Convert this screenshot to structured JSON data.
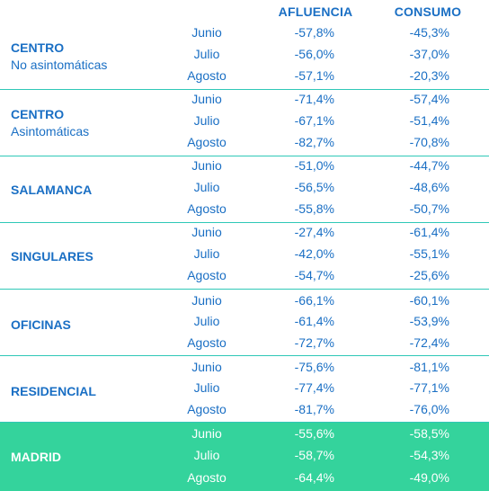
{
  "header": {
    "afluencia": "AFLUENCIA",
    "consumo": "CONSUMO"
  },
  "groups": [
    {
      "title": "CENTRO",
      "subtitle": "No asintomáticas",
      "rows": [
        {
          "month": "Junio",
          "afluencia": "-57,8%",
          "consumo": "-45,3%"
        },
        {
          "month": "Julio",
          "afluencia": "-56,0%",
          "consumo": "-37,0%"
        },
        {
          "month": "Agosto",
          "afluencia": "-57,1%",
          "consumo": "-20,3%"
        }
      ]
    },
    {
      "title": "CENTRO",
      "subtitle": "Asintomáticas",
      "rows": [
        {
          "month": "Junio",
          "afluencia": "-71,4%",
          "consumo": "-57,4%"
        },
        {
          "month": "Julio",
          "afluencia": "-67,1%",
          "consumo": "-51,4%"
        },
        {
          "month": "Agosto",
          "afluencia": "-82,7%",
          "consumo": "-70,8%"
        }
      ]
    },
    {
      "title": "SALAMANCA",
      "subtitle": "",
      "rows": [
        {
          "month": "Junio",
          "afluencia": "-51,0%",
          "consumo": "-44,7%"
        },
        {
          "month": "Julio",
          "afluencia": "-56,5%",
          "consumo": "-48,6%"
        },
        {
          "month": "Agosto",
          "afluencia": "-55,8%",
          "consumo": "-50,7%"
        }
      ]
    },
    {
      "title": "SINGULARES",
      "subtitle": "",
      "rows": [
        {
          "month": "Junio",
          "afluencia": "-27,4%",
          "consumo": "-61,4%"
        },
        {
          "month": "Julio",
          "afluencia": "-42,0%",
          "consumo": "-55,1%"
        },
        {
          "month": "Agosto",
          "afluencia": "-54,7%",
          "consumo": "-25,6%"
        }
      ]
    },
    {
      "title": "OFICINAS",
      "subtitle": "",
      "rows": [
        {
          "month": "Junio",
          "afluencia": "-66,1%",
          "consumo": "-60,1%"
        },
        {
          "month": "Julio",
          "afluencia": "-61,4%",
          "consumo": "-53,9%"
        },
        {
          "month": "Agosto",
          "afluencia": "-72,7%",
          "consumo": "-72,4%"
        }
      ]
    },
    {
      "title": "RESIDENCIAL",
      "subtitle": "",
      "rows": [
        {
          "month": "Junio",
          "afluencia": "-75,6%",
          "consumo": "-81,1%"
        },
        {
          "month": "Julio",
          "afluencia": "-77,4%",
          "consumo": "-77,1%"
        },
        {
          "month": "Agosto",
          "afluencia": "-81,7%",
          "consumo": "-76,0%"
        }
      ]
    },
    {
      "title": "MADRID",
      "subtitle": "",
      "rows": [
        {
          "month": "Junio",
          "afluencia": "-55,6%",
          "consumo": "-58,5%"
        },
        {
          "month": "Julio",
          "afluencia": "-58,7%",
          "consumo": "-54,3%"
        },
        {
          "month": "Agosto",
          "afluencia": "-64,4%",
          "consumo": "-49,0%"
        }
      ]
    }
  ],
  "colors": {
    "text": "#1a6fc4",
    "divider": "#2fc8b7",
    "highlight_bg": "#34d39c",
    "highlight_text": "#ffffff"
  }
}
